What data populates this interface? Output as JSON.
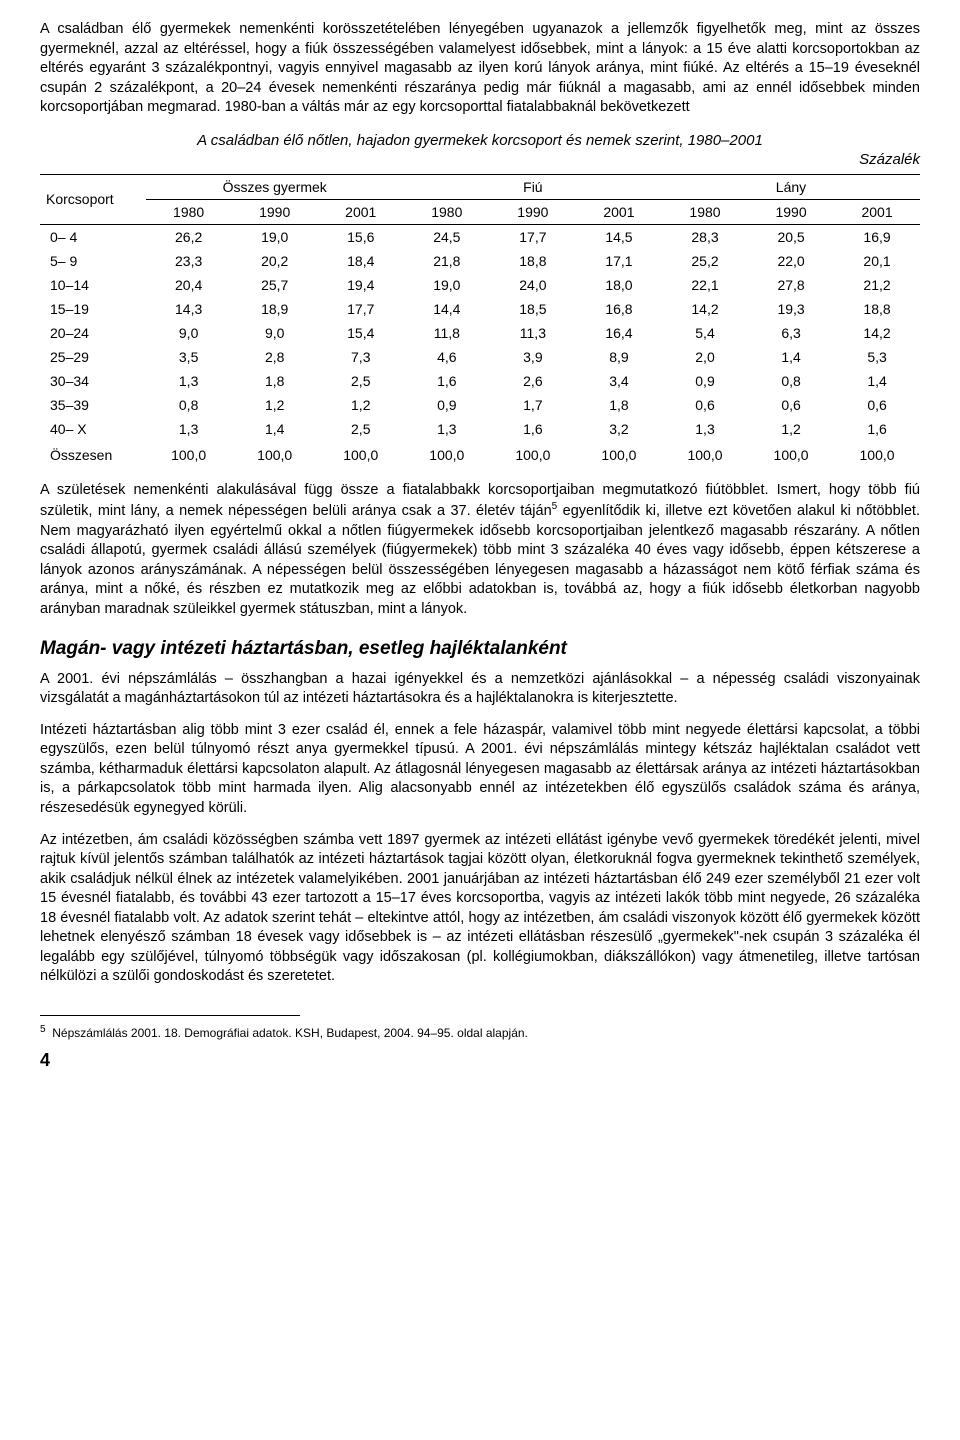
{
  "para1": "A családban élő gyermekek nemenkénti korösszetételében lényegében ugyanazok a jellemzők figyelhetők meg, mint az összes gyermeknél, azzal az eltéréssel, hogy a fiúk összességében valamelyest idősebbek, mint a lányok: a 15 éve alatti korcsoportokban az eltérés egyaránt 3 százalékpontnyi, vagyis ennyivel magasabb az ilyen korú lányok aránya, mint fiúké. Az eltérés a 15–19 éveseknél csupán 2 százalékpont, a 20–24 évesek nemenkénti részaránya pedig már fiúknál a magasabb, ami az ennél idősebbek minden korcsoportjában megmarad. 1980-ban a váltás már az egy korcsoporttal fiatalabbaknál bekövetkezett",
  "table": {
    "title": "A családban élő nőtlen, hajadon gyermekek korcsoport és nemek szerint, 1980–2001",
    "unit": "Százalék",
    "corner": "Korcsoport",
    "groups": [
      "Összes gyermek",
      "Fiú",
      "Lány"
    ],
    "years": [
      "1980",
      "1990",
      "2001",
      "1980",
      "1990",
      "2001",
      "1980",
      "1990",
      "2001"
    ],
    "rows": [
      {
        "label": "0– 4",
        "v": [
          "26,2",
          "19,0",
          "15,6",
          "24,5",
          "17,7",
          "14,5",
          "28,3",
          "20,5",
          "16,9"
        ]
      },
      {
        "label": "5– 9",
        "v": [
          "23,3",
          "20,2",
          "18,4",
          "21,8",
          "18,8",
          "17,1",
          "25,2",
          "22,0",
          "20,1"
        ]
      },
      {
        "label": "10–14",
        "v": [
          "20,4",
          "25,7",
          "19,4",
          "19,0",
          "24,0",
          "18,0",
          "22,1",
          "27,8",
          "21,2"
        ]
      },
      {
        "label": "15–19",
        "v": [
          "14,3",
          "18,9",
          "17,7",
          "14,4",
          "18,5",
          "16,8",
          "14,2",
          "19,3",
          "18,8"
        ]
      },
      {
        "label": "20–24",
        "v": [
          "9,0",
          "9,0",
          "15,4",
          "11,8",
          "11,3",
          "16,4",
          "5,4",
          "6,3",
          "14,2"
        ]
      },
      {
        "label": "25–29",
        "v": [
          "3,5",
          "2,8",
          "7,3",
          "4,6",
          "3,9",
          "8,9",
          "2,0",
          "1,4",
          "5,3"
        ]
      },
      {
        "label": "30–34",
        "v": [
          "1,3",
          "1,8",
          "2,5",
          "1,6",
          "2,6",
          "3,4",
          "0,9",
          "0,8",
          "1,4"
        ]
      },
      {
        "label": "35–39",
        "v": [
          "0,8",
          "1,2",
          "1,2",
          "0,9",
          "1,7",
          "1,8",
          "0,6",
          "0,6",
          "0,6"
        ]
      },
      {
        "label": "40– X",
        "v": [
          "1,3",
          "1,4",
          "2,5",
          "1,3",
          "1,6",
          "3,2",
          "1,3",
          "1,2",
          "1,6"
        ]
      }
    ],
    "total": {
      "label": "Összesen",
      "v": [
        "100,0",
        "100,0",
        "100,0",
        "100,0",
        "100,0",
        "100,0",
        "100,0",
        "100,0",
        "100,0"
      ]
    },
    "col_widths_pct": [
      12,
      9.78,
      9.78,
      9.78,
      9.78,
      9.78,
      9.78,
      9.78,
      9.78,
      9.78
    ]
  },
  "para2_a": "A születések nemenkénti alakulásával függ össze a fiatalabbakk korcsoportjaiban megmutatkozó fiútöbblet. Ismert, hogy több fiú születik, mint lány, a nemek népességen belüli aránya csak a 37. életév táján",
  "para2_b": " egyenlítődik ki, illetve ezt követően alakul ki nőtöbblet. Nem magyarázható ilyen egyértelmű okkal a nőtlen fiúgyermekek idősebb korcsoportjaiban jelentkező magasabb részarány. A nőtlen családi állapotú, gyermek családi állású személyek (fiúgyermekek) több mint 3 százaléka 40 éves vagy idősebb, éppen kétszerese a lányok azonos arányszámának. A népességen belül összességében lényegesen magasabb a házasságot nem kötő férfiak száma és aránya, mint a nőké, és részben ez mutatkozik meg az előbbi adatokban is, továbbá az, hogy a fiúk idősebb életkorban nagyobb arányban maradnak szüleikkel gyermek státuszban, mint a lányok.",
  "section_heading": "Magán- vagy intézeti háztartásban, esetleg hajléktalanként",
  "para3": "A 2001. évi népszámlálás – összhangban a hazai igényekkel és a nemzetközi ajánlásokkal – a népesség családi viszonyainak vizsgálatát a magánháztartásokon túl az intézeti háztartásokra és a hajléktalanokra is kiterjesztette.",
  "para4": "Intézeti háztartásban alig több mint 3 ezer család él, ennek a fele házaspár, valamivel több mint negyede élettársi kapcsolat, a többi egyszülős, ezen belül túlnyomó részt anya gyermekkel típusú. A 2001. évi népszámlálás mintegy kétszáz hajléktalan családot vett számba, kétharmaduk élettársi kapcsolaton alapult. Az átlagosnál lényegesen magasabb az élettársak aránya az intézeti háztartásokban is, a párkapcsolatok több mint harmada ilyen. Alig alacsonyabb ennél az intézetekben élő egyszülős családok száma és aránya, részesedésük egynegyed körüli.",
  "para5": "Az intézetben, ám családi közösségben számba vett 1897 gyermek az intézeti ellátást igénybe vevő gyermekek töredékét jelenti, mivel rajtuk kívül jelentős számban találhatók az intézeti háztartások tagjai között olyan, életkoruknál fogva gyermeknek tekinthető személyek, akik családjuk nélkül élnek az intézetek valamelyikében. 2001 januárjában az intézeti háztartásban élő 249 ezer személyből 21 ezer volt 15 évesnél fiatalabb, és további 43 ezer tartozott a 15–17 éves korcsoportba, vagyis az intézeti lakók több mint negyede, 26 százaléka 18 évesnél fiatalabb volt. Az adatok szerint tehát – eltekintve attól, hogy az intézetben, ám családi viszonyok között élő gyermekek között lehetnek elenyésző számban 18 évesek vagy idősebbek is – az intézeti ellátásban részesülő „gyermekek\"-nek csupán 3 százaléka él legalább egy szülőjével, túlnyomó többségük vagy időszakosan (pl. kollégiumokban, diákszállókon) vagy átmenetileg, illetve tartósan nélkülözi a szülői gondoskodást és szeretetet.",
  "footnote": "Népszámlálás 2001. 18. Demográfiai adatok. KSH, Budapest, 2004. 94–95. oldal alapján.",
  "footnote_marker": "5",
  "pagenum": "4"
}
